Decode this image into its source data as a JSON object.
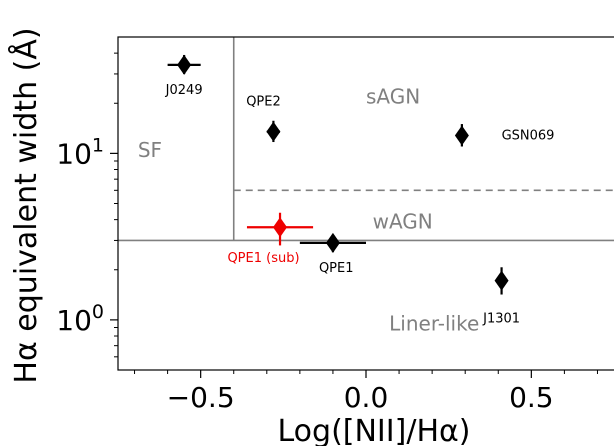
{
  "chart_data": {
    "type": "scatter",
    "title": "",
    "xlabel": "Log([NII]/Hα)",
    "ylabel": "Hα equivalent width (Å)",
    "xlim": [
      -0.75,
      0.75
    ],
    "ylim": [
      0.5,
      50
    ],
    "yscale": "log",
    "grid": false,
    "legend": "none",
    "x_ticks": [
      {
        "value": -0.5,
        "label": "−0.5"
      },
      {
        "value": 0.0,
        "label": "0.0"
      },
      {
        "value": 0.5,
        "label": "0.5"
      }
    ],
    "y_ticks": [
      {
        "value": 1,
        "base": "10",
        "exp": "0"
      },
      {
        "value": 10,
        "base": "10",
        "exp": "1"
      }
    ],
    "region_labels": [
      {
        "text": "SF",
        "x": -0.69,
        "y": 10.5
      },
      {
        "text": "sAGN",
        "x": 0.0,
        "y": 22
      },
      {
        "text": "wAGN",
        "x": 0.02,
        "y": 3.9
      },
      {
        "text": "Liner-like",
        "x": 0.07,
        "y": 0.95
      }
    ],
    "divider_lines": [
      {
        "x": [
          -0.4,
          -0.4
        ],
        "y": [
          3.0,
          50
        ],
        "style": "solid",
        "color": "#808080"
      },
      {
        "x": [
          -0.75,
          0.75
        ],
        "y": [
          3.0,
          3.0
        ],
        "style": "solid",
        "color": "#808080"
      },
      {
        "x": [
          -0.4,
          0.75
        ],
        "y": [
          6.0,
          6.0
        ],
        "style": "dashed",
        "color": "#808080"
      }
    ],
    "points": [
      {
        "label": "J0249",
        "x": -0.55,
        "y": 34,
        "xerr": 0.05,
        "yerr_lo": 4,
        "yerr_hi": 5,
        "color": "#000000",
        "label_x": -0.55,
        "label_y": 24
      },
      {
        "label": "QPE2",
        "x": -0.28,
        "y": 13.5,
        "xerr": 0.02,
        "yerr_lo": 1.8,
        "yerr_hi": 2.2,
        "color": "#000000",
        "label_x": -0.31,
        "label_y": 20.5
      },
      {
        "label": "GSN069",
        "x": 0.29,
        "y": 12.8,
        "xerr": 0.015,
        "yerr_lo": 1.8,
        "yerr_hi": 2.2,
        "color": "#000000",
        "label_x": 0.41,
        "label_y": 12.8
      },
      {
        "label": "QPE1 (sub)",
        "x": -0.26,
        "y": 3.6,
        "xerr": 0.1,
        "yerr_lo": 0.8,
        "yerr_hi": 0.8,
        "color": "#ee0000",
        "label_x": -0.31,
        "label_y": 2.35
      },
      {
        "label": "QPE1",
        "x": -0.1,
        "y": 2.9,
        "xerr": 0.1,
        "yerr_lo": 0.35,
        "yerr_hi": 0.35,
        "color": "#000000",
        "label_x": -0.09,
        "label_y": 2.05
      },
      {
        "label": "J1301",
        "x": 0.41,
        "y": 1.72,
        "xerr": 0.015,
        "yerr_lo": 0.3,
        "yerr_hi": 0.35,
        "color": "#000000",
        "label_x": 0.41,
        "label_y": 1.02
      }
    ],
    "colors": {
      "axes": "#000000",
      "region_text": "#808080"
    }
  }
}
